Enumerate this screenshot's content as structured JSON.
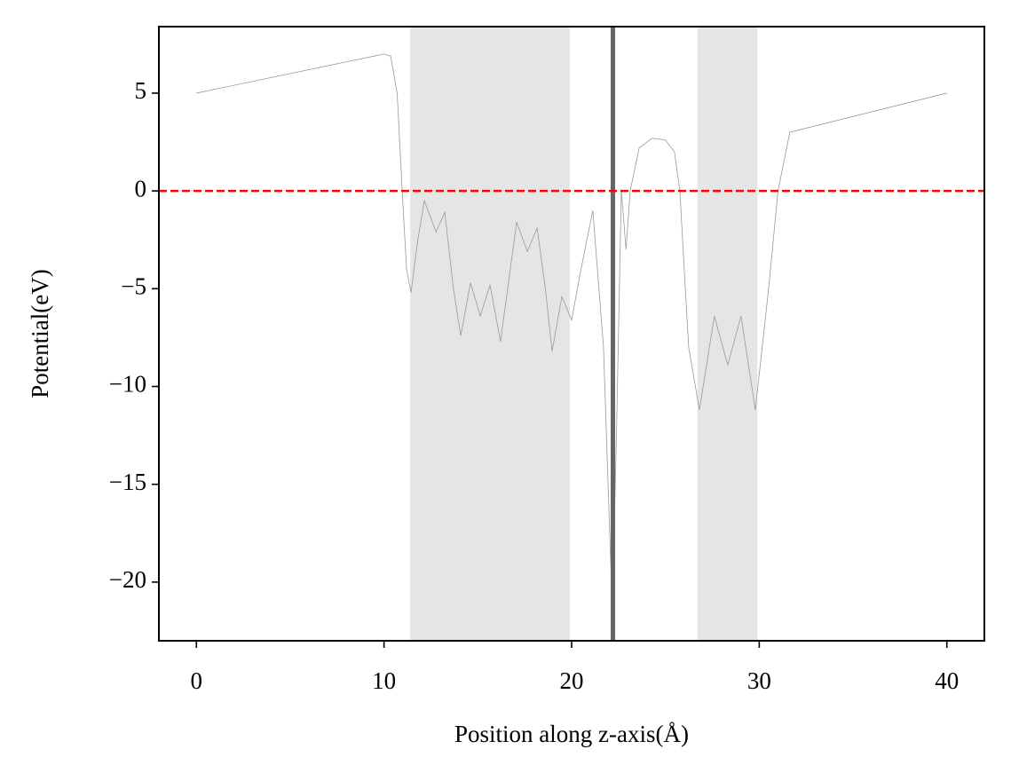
{
  "chart_data": {
    "type": "line",
    "xlabel": "Position along z-axis(Å)",
    "ylabel": "Potential(eV)",
    "x": [
      0,
      5,
      9.5,
      10.0,
      10.35,
      10.7,
      10.97,
      11.2,
      11.44,
      11.8,
      12.15,
      12.77,
      13.24,
      13.7,
      14.09,
      14.61,
      15.13,
      15.65,
      16.21,
      17.07,
      17.64,
      18.16,
      18.6,
      18.96,
      19.48,
      20.0,
      20.5,
      21.13,
      21.7,
      22.17,
      22.4,
      22.65,
      22.9,
      23.12,
      23.6,
      24.3,
      25.0,
      25.48,
      25.77,
      26.0,
      26.24,
      26.81,
      27.61,
      28.32,
      29.03,
      29.79,
      30.5,
      31.0,
      31.63,
      40
    ],
    "values": [
      5.0,
      6.0,
      6.9,
      7.0,
      6.9,
      5.0,
      0,
      -4.0,
      -5.2,
      -2.5,
      -0.5,
      -2.1,
      -1.1,
      -5.0,
      -7.4,
      -4.7,
      -6.4,
      -4.8,
      -7.7,
      -1.6,
      -3.1,
      -1.9,
      -5.0,
      -8.2,
      -5.4,
      -6.6,
      -4.0,
      -1.0,
      -8.0,
      -21.5,
      -12.0,
      0,
      -3.0,
      0,
      2.2,
      2.7,
      2.6,
      2.0,
      0,
      -4.0,
      -8.0,
      -11.2,
      -6.4,
      -8.9,
      -6.4,
      -11.2,
      -5.0,
      0,
      3.0,
      5.0
    ],
    "color": "#999999",
    "xlim": [
      -2,
      42
    ],
    "ylim": [
      -23,
      8.4
    ],
    "xticks": [
      0,
      10,
      20,
      30,
      40
    ],
    "yticks": [
      5,
      0,
      {
        "value": -5,
        "label": "−5"
      },
      {
        "value": -10,
        "label": "−10"
      },
      {
        "value": -15,
        "label": "−15"
      },
      {
        "value": -20,
        "label": "−20"
      }
    ],
    "spans": [
      {
        "x0": 11.4,
        "x1": 19.9,
        "color": "#e5e5e5"
      },
      {
        "x0": 26.7,
        "x1": 29.9,
        "color": "#e5e5e5"
      }
    ],
    "vlines": [
      {
        "x": 22.2,
        "color": "#666666"
      }
    ],
    "hlines": [
      {
        "y": 0,
        "color": "#ff0000",
        "dashed": true
      }
    ]
  }
}
